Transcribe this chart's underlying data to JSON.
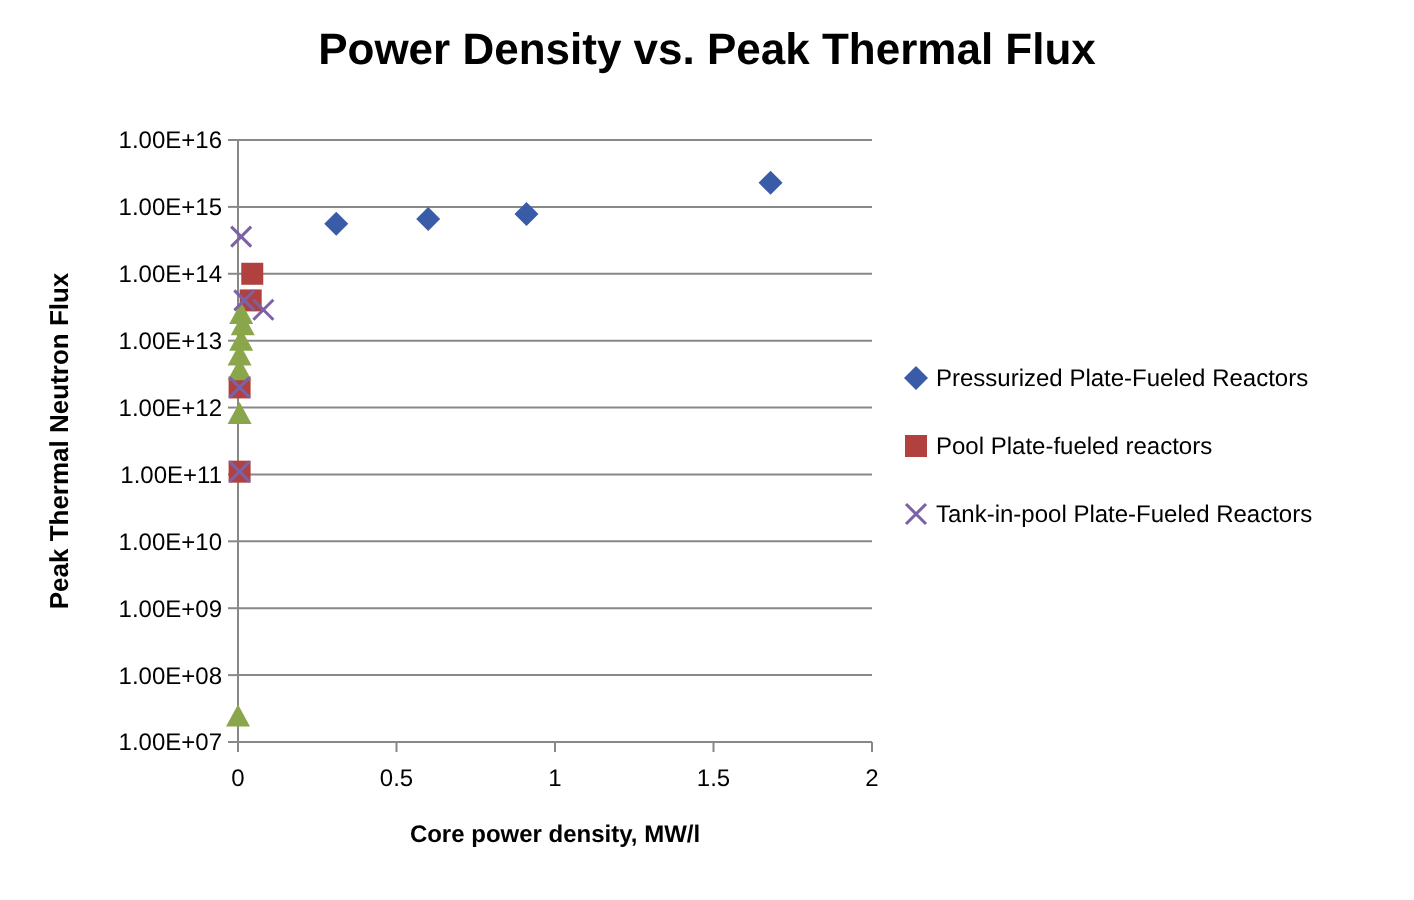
{
  "chart_data": {
    "type": "scatter",
    "title": "Power Density vs. Peak Thermal Flux",
    "xlabel": "Core power density, MW/l",
    "ylabel": "Peak Thermal Neutron Flux",
    "log": "y",
    "grid": "y",
    "legend": "right",
    "xlim": [
      0,
      2
    ],
    "xticks": [
      0,
      0.5,
      1,
      1.5,
      2
    ],
    "ylim": [
      10000000.0,
      1e+16
    ],
    "yticks": [
      {
        "value": 10000000.0,
        "label": "1.00E+07"
      },
      {
        "value": 100000000.0,
        "label": "1.00E+08"
      },
      {
        "value": 1000000000.0,
        "label": "1.00E+09"
      },
      {
        "value": 10000000000.0,
        "label": "1.00E+10"
      },
      {
        "value": 100000000000.0,
        "label": "1.00E+11"
      },
      {
        "value": 1000000000000.0,
        "label": "1.00E+12"
      },
      {
        "value": 10000000000000.0,
        "label": "1.00E+13"
      },
      {
        "value": 100000000000000.0,
        "label": "1.00E+14"
      },
      {
        "value": 1000000000000000.0,
        "label": "1.00E+15"
      },
      {
        "value": 1e+16,
        "label": "1.00E+16"
      }
    ],
    "series": [
      {
        "name": "Pressurized Plate-Fueled Reactors",
        "color": "#3a5ba8",
        "marker": "diamond",
        "x": [
          0.31,
          0.6,
          0.91,
          1.68
        ],
        "values": [
          560000000000000.0,
          660000000000000.0,
          780000000000000.0,
          2300000000000000.0
        ]
      },
      {
        "name": "Pool Plate-fueled reactors",
        "color": "#b0413e",
        "marker": "square",
        "x": [
          0.045,
          0.04,
          0.005,
          0.005
        ],
        "values": [
          100000000000000.0,
          40000000000000.0,
          2000000000000.0,
          110000000000.0
        ]
      },
      {
        "color": "#8aa64a",
        "marker": "triangle",
        "x": [
          0.01,
          0.015,
          0.01,
          0.005,
          0.005,
          0.005,
          0
        ],
        "values": [
          25000000000000.0,
          17000000000000.0,
          10000000000000.0,
          6000000000000.0,
          3600000000000.0,
          800000000000.0,
          24000000.0
        ]
      },
      {
        "name": "Tank-in-pool Plate-Fueled Reactors",
        "color": "#7b62a6",
        "marker": "cross",
        "x": [
          0.01,
          0.08,
          0.02,
          0.005,
          0.005
        ],
        "values": [
          360000000000000.0,
          29000000000000.0,
          40000000000000.0,
          2000000000000.0,
          110000000000.0
        ]
      }
    ]
  }
}
